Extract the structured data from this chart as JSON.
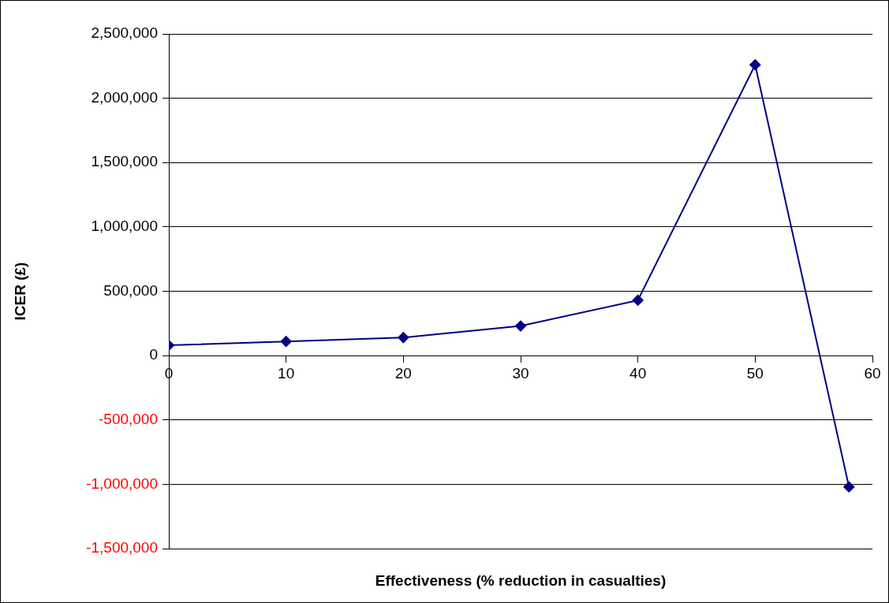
{
  "chart_data": {
    "type": "line",
    "xlabel": "Effectiveness (% reduction in casualties)",
    "ylabel": "ICER (£)",
    "x": [
      0,
      10,
      20,
      30,
      40,
      50,
      58
    ],
    "series": [
      {
        "color": "#000080",
        "values": [
          80000,
          110000,
          140000,
          230000,
          430000,
          2260000,
          -1020000
        ]
      }
    ],
    "xlim": [
      0,
      60
    ],
    "xticks": [
      0,
      10,
      20,
      30,
      40,
      50,
      60
    ],
    "ylim": [
      -1500000,
      2500000
    ],
    "yticks": [
      {
        "value": -1500000,
        "label": "-1,500,000"
      },
      {
        "value": -1000000,
        "label": "-1,000,000"
      },
      {
        "value": -500000,
        "label": "-500,000"
      },
      0,
      {
        "value": 500000,
        "label": "500,000"
      },
      {
        "value": 1000000,
        "label": "1,000,000"
      },
      {
        "value": 1500000,
        "label": "1,500,000"
      },
      {
        "value": 2000000,
        "label": "2,000,000"
      },
      {
        "value": 2500000,
        "label": "2,500,000"
      }
    ],
    "grid": "y",
    "legend": false,
    "marker": "diamond",
    "line_style": "solid"
  }
}
